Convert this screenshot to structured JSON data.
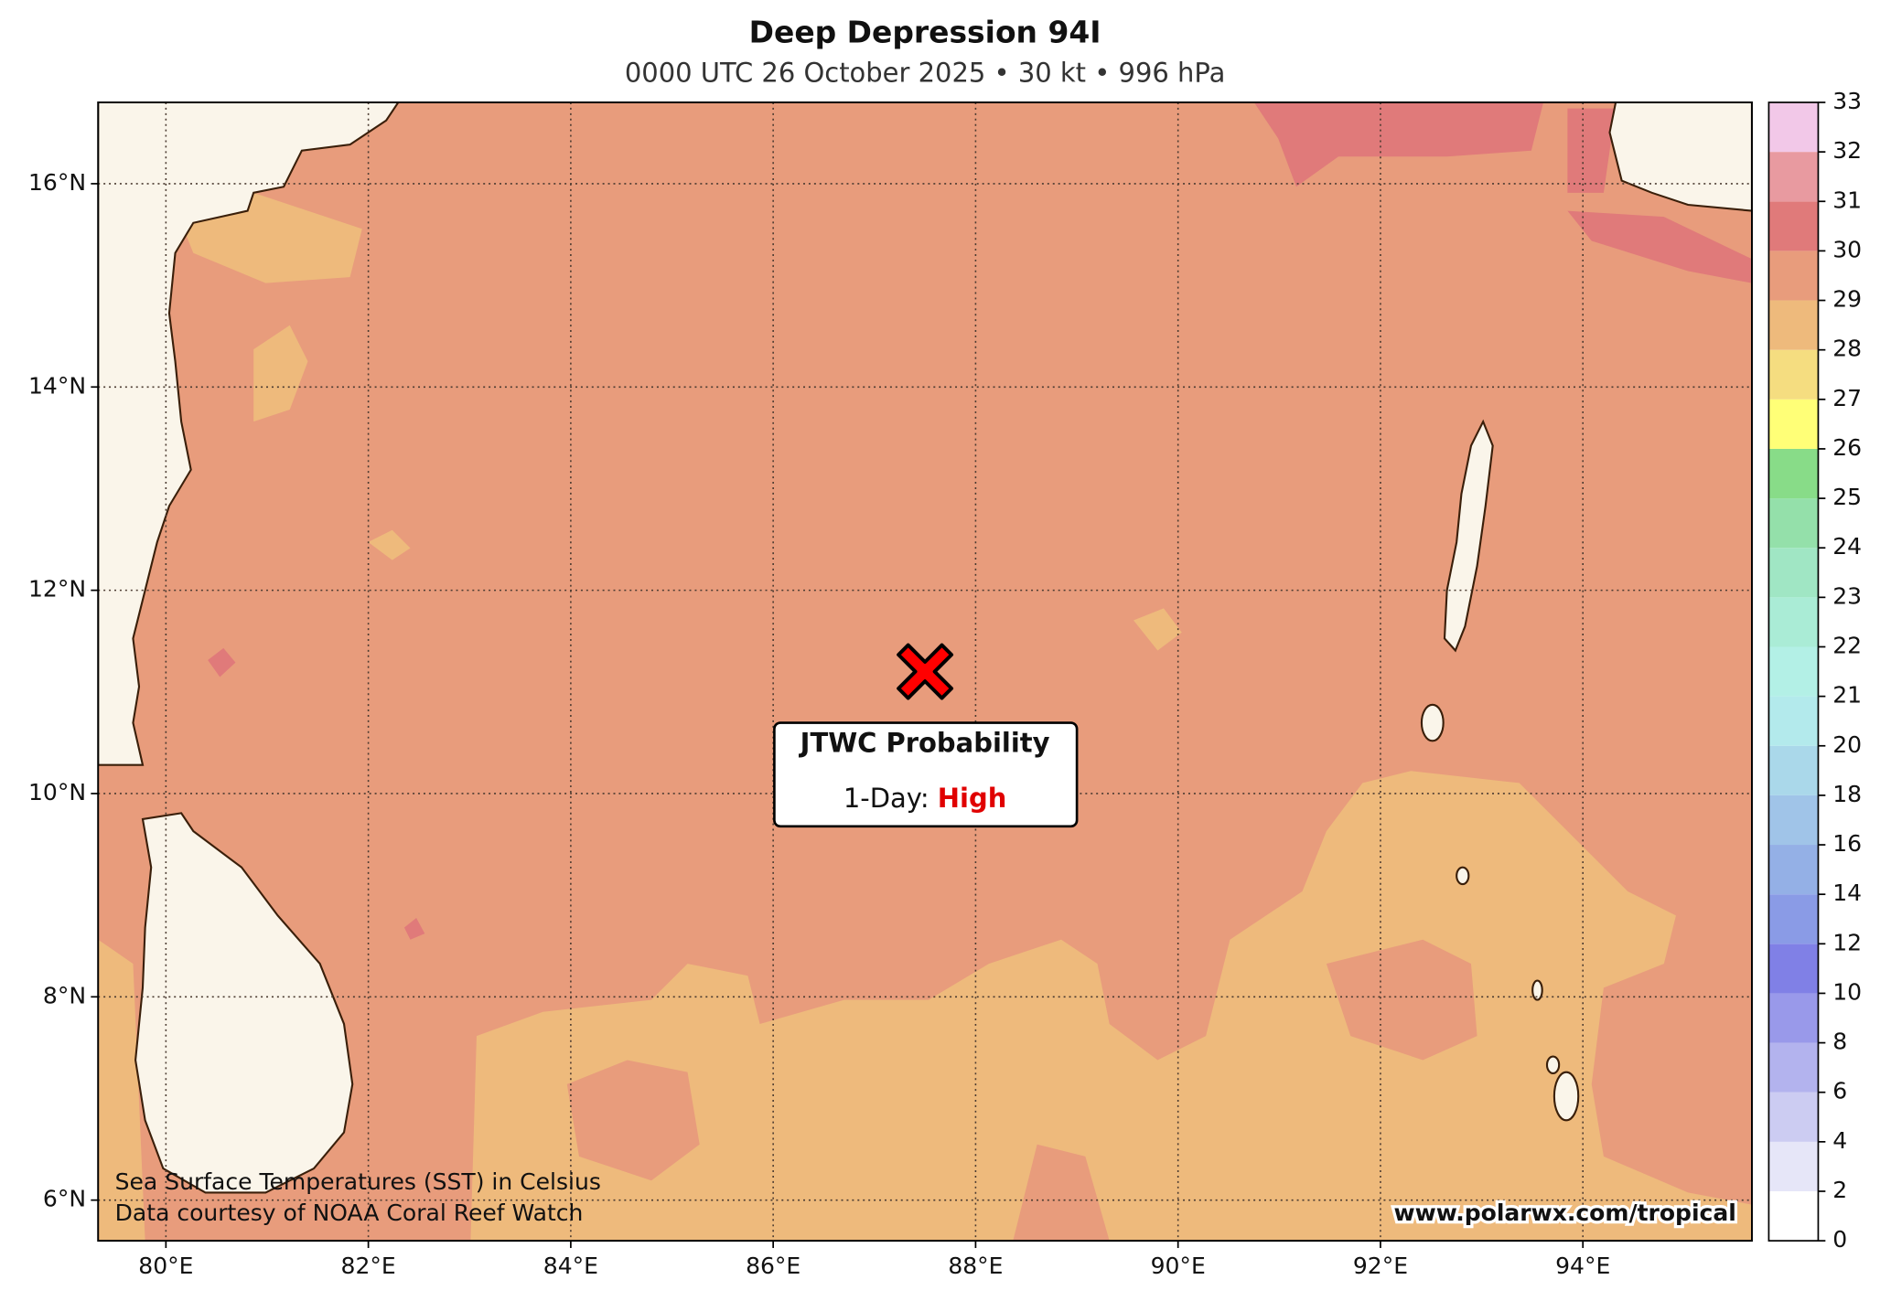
{
  "chart_data": {
    "type": "map",
    "title": "Deep Depression 94I",
    "subtitle": "0000 UTC 26 October 2025 • 30 kt • 996 hPa",
    "xlim": [
      79.33,
      95.67
    ],
    "ylim": [
      5.6,
      16.8
    ],
    "xticks": [
      {
        "value": 80,
        "label": "80°E"
      },
      {
        "value": 82,
        "label": "82°E"
      },
      {
        "value": 84,
        "label": "84°E"
      },
      {
        "value": 86,
        "label": "86°E"
      },
      {
        "value": 88,
        "label": "88°E"
      },
      {
        "value": 90,
        "label": "90°E"
      },
      {
        "value": 92,
        "label": "92°E"
      },
      {
        "value": 94,
        "label": "94°E"
      }
    ],
    "yticks": [
      {
        "value": 6,
        "label": "6°N"
      },
      {
        "value": 8,
        "label": "8°N"
      },
      {
        "value": 10,
        "label": "10°N"
      },
      {
        "value": 12,
        "label": "12°N"
      },
      {
        "value": 14,
        "label": "14°N"
      },
      {
        "value": 16,
        "label": "16°N"
      }
    ],
    "grid": true,
    "storm": {
      "lon": 87.5,
      "lat": 11.2,
      "color": "#ff0000"
    },
    "probability_box": {
      "title": "JTWC Probability",
      "label": "1-Day:",
      "value": "High",
      "value_color": "#e00000"
    },
    "colorbar": {
      "levels": [
        0,
        2,
        4,
        6,
        8,
        10,
        12,
        14,
        16,
        18,
        20,
        21,
        22,
        23,
        24,
        25,
        26,
        27,
        28,
        29,
        30,
        31,
        32,
        33
      ],
      "colors": [
        "#ffffff",
        "#e6e6f8",
        "#ccccf2",
        "#b3b3ee",
        "#9999ea",
        "#8080e6",
        "#8a9be6",
        "#94b0e6",
        "#a0c4e8",
        "#aad8ea",
        "#b3eaec",
        "#b3f0e6",
        "#aaecd6",
        "#a0e6c4",
        "#94e0aa",
        "#88dc88",
        "#ffff77",
        "#f5dd80",
        "#eeba7c",
        "#e89c7c",
        "#e07a7a",
        "#e89aa0",
        "#f2c8e8"
      ]
    },
    "notes": [
      "Sea Surface Temperatures (SST) in Celsius",
      "Data courtesy of NOAA Coral Reef Watch"
    ],
    "website": "www.polarwx.com/tropical"
  }
}
